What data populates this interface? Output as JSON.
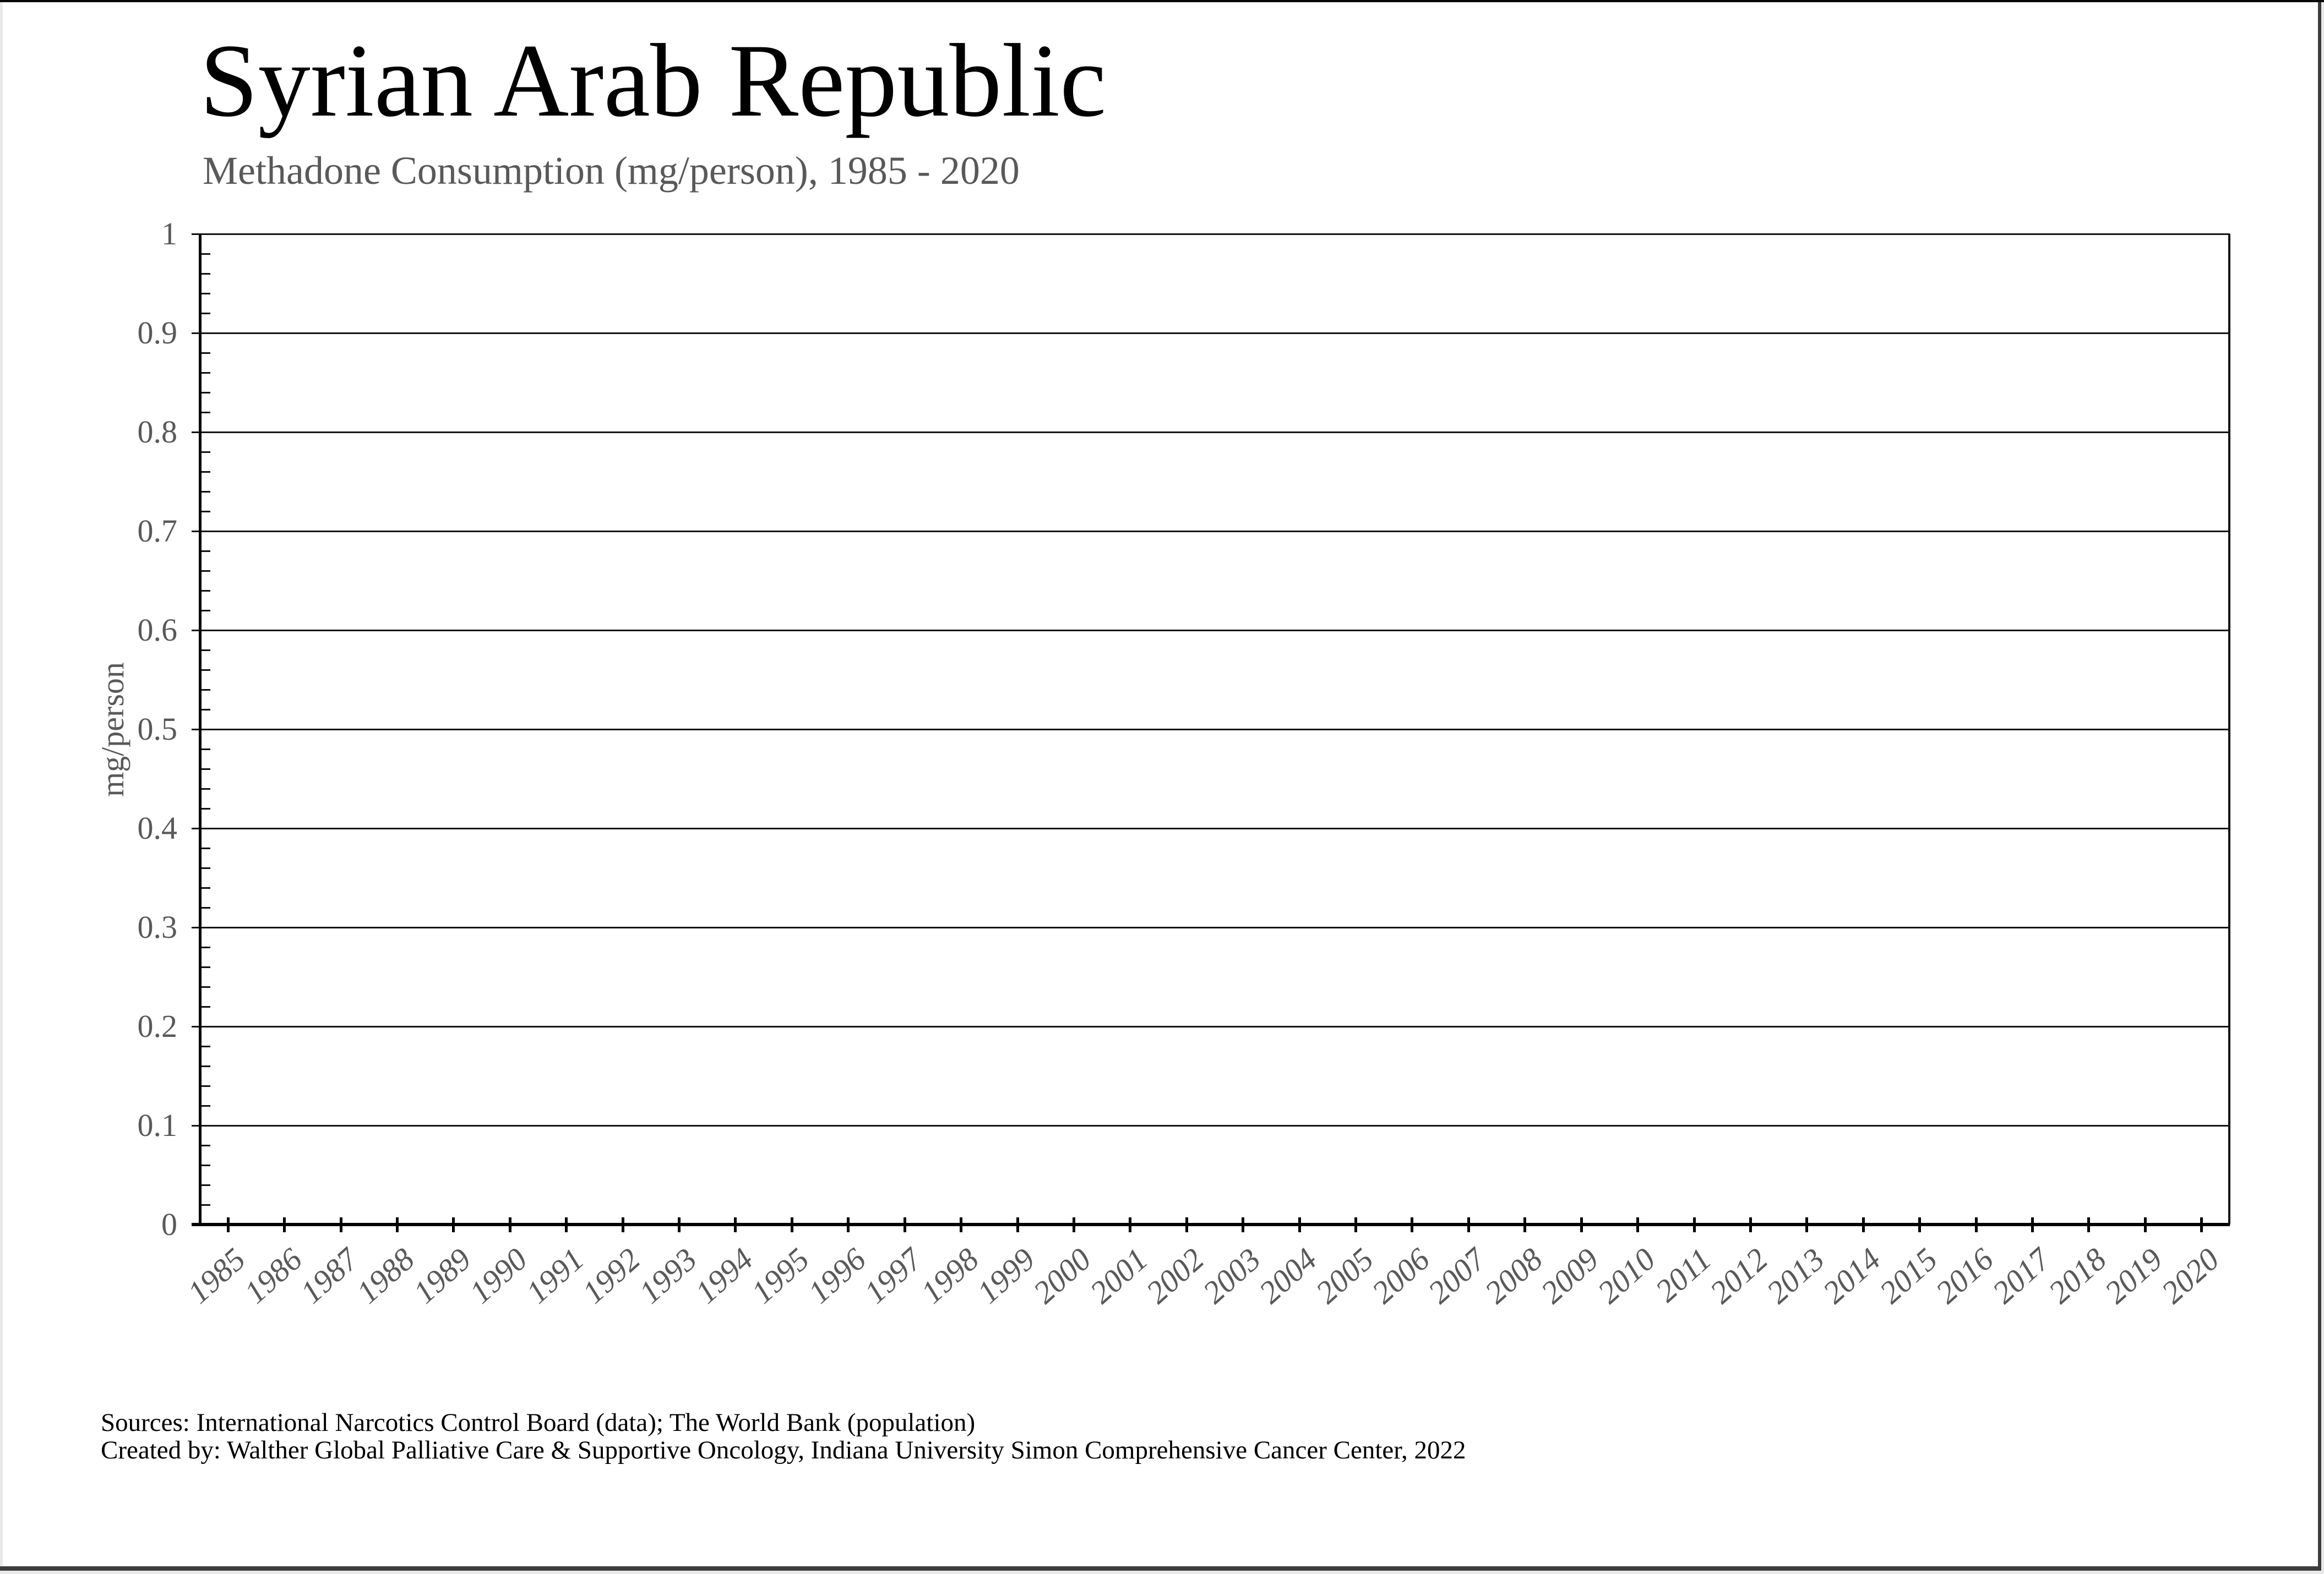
{
  "header": {
    "title": "Syrian Arab Republic",
    "subtitle": "Methadone Consumption (mg/person), 1985 - 2020"
  },
  "chart_data": {
    "type": "line",
    "title": "Syrian Arab Republic",
    "subtitle": "Methadone Consumption (mg/person), 1985 - 2020",
    "xlabel": "",
    "ylabel": "mg/person",
    "ylim": [
      0,
      1
    ],
    "y_major_tick_step": 0.1,
    "y_minor_tick_step": 0.02,
    "y_tick_labels": [
      "1",
      "0.9",
      "0.8",
      "0.7",
      "0.6",
      "0.5",
      "0.4",
      "0.3",
      "0.2",
      "0.1",
      "0"
    ],
    "categories": [
      "1985",
      "1986",
      "1987",
      "1988",
      "1989",
      "1990",
      "1991",
      "1992",
      "1993",
      "1994",
      "1995",
      "1996",
      "1997",
      "1998",
      "1999",
      "2000",
      "2001",
      "2002",
      "2003",
      "2004",
      "2005",
      "2006",
      "2007",
      "2008",
      "2009",
      "2010",
      "2011",
      "2012",
      "2013",
      "2014",
      "2015",
      "2016",
      "2017",
      "2018",
      "2019",
      "2020"
    ],
    "series": [],
    "legend": "none",
    "grid": "horizontal-major-gridlines"
  },
  "footer": {
    "line1": "Sources: International Narcotics Control Board (data); The World Bank (population)",
    "line2": "Created by: Walther Global Palliative Care & Supportive Oncology, Indiana University Simon Comprehensive Cancer Center, 2022"
  },
  "colors": {
    "muted_text": "#595959",
    "gridline": "#141414",
    "axis": "#000000",
    "frame_dark": "#3d3d3d",
    "frame_light": "#e9e9e9",
    "top_border": "#060606"
  }
}
